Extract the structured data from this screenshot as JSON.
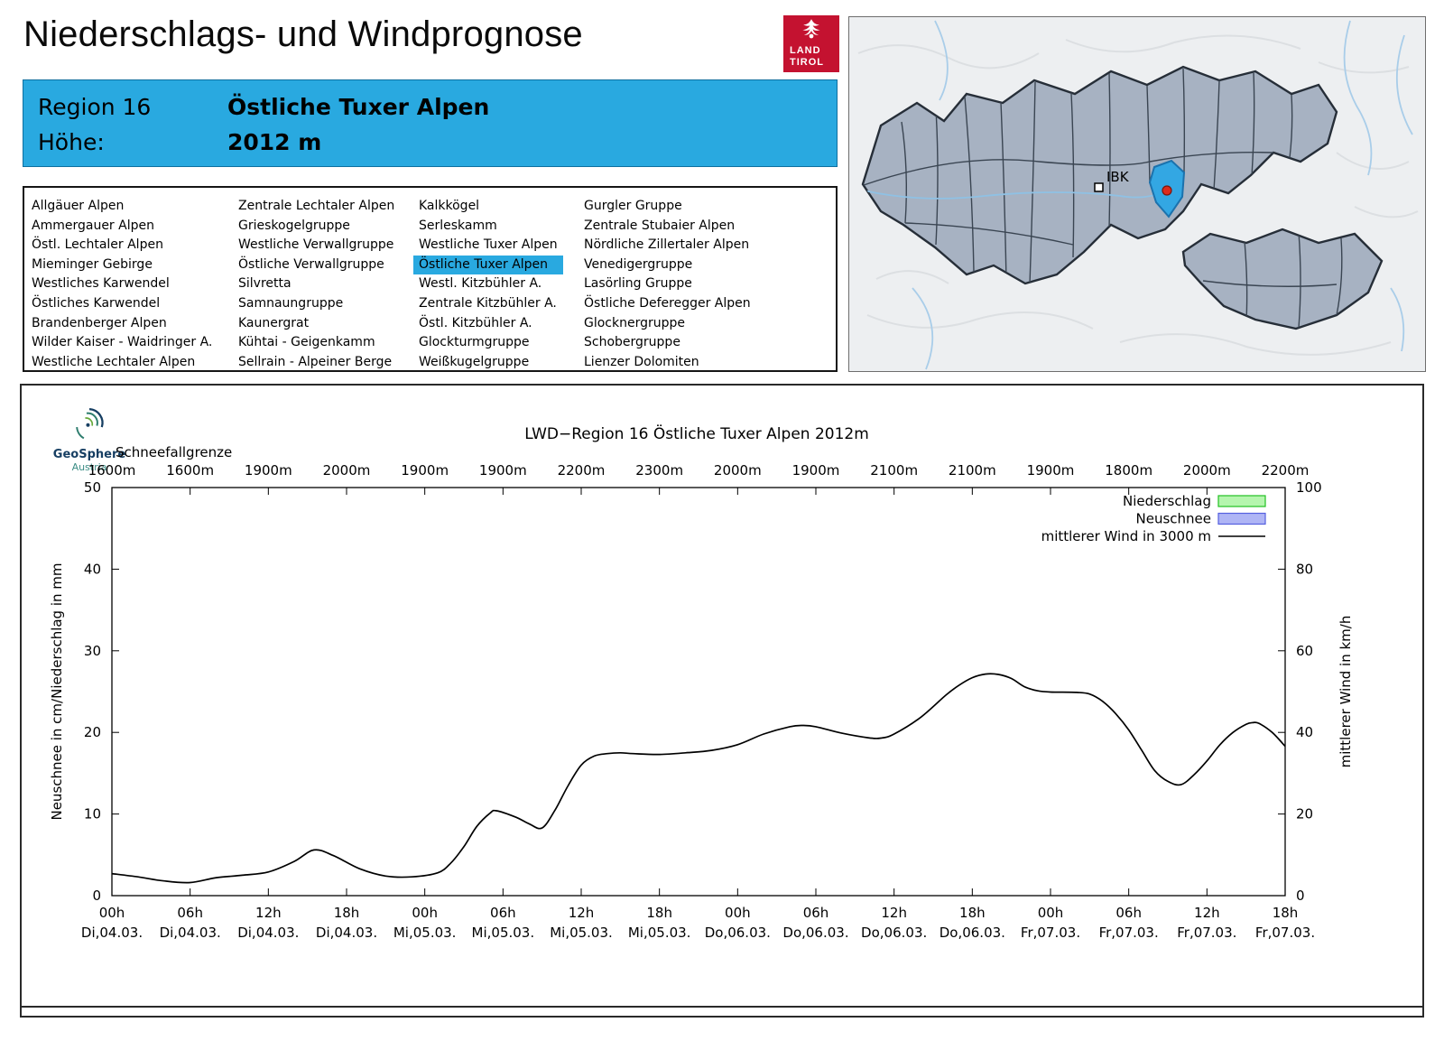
{
  "header": {
    "title": "Niederschlags- und Windprognose",
    "logo": {
      "line1": "LAND",
      "line2": "TIROL"
    }
  },
  "region_info": {
    "region_label": "Region 16",
    "region_name": "Östliche Tuxer Alpen",
    "altitude_label": "Höhe:",
    "altitude_value": "2012 m"
  },
  "region_list": {
    "selected": "Östliche Tuxer Alpen",
    "selected_color": "#29a9e0",
    "columns": [
      [
        "Allgäuer Alpen",
        "Ammergauer Alpen",
        "Östl. Lechtaler Alpen",
        "Mieminger Gebirge",
        "Westliches Karwendel",
        "Östliches Karwendel",
        "Brandenberger Alpen",
        "Wilder Kaiser - Waidringer A.",
        "Westliche Lechtaler Alpen"
      ],
      [
        "Zentrale Lechtaler Alpen",
        "Grieskogelgruppe",
        "Westliche Verwallgruppe",
        "Östliche Verwallgruppe",
        "Silvretta",
        "Samnaungruppe",
        "Kaunergrat",
        "Kühtai - Geigenkamm",
        "Sellrain - Alpeiner Berge"
      ],
      [
        "Kalkkögel",
        "Serleskamm",
        "Westliche Tuxer Alpen",
        "Östliche Tuxer Alpen",
        "Westl. Kitzbühler A.",
        "Zentrale Kitzbühler A.",
        "Östl. Kitzbühler A.",
        "Glockturmgruppe",
        "Weißkugelgruppe"
      ],
      [
        "Gurgler Gruppe",
        "Zentrale Stubaier Alpen",
        "Nördliche Zillertaler Alpen",
        "Venedigergruppe",
        "Lasörling Gruppe",
        "Östliche Deferegger Alpen",
        "Glocknergruppe",
        "Schobergruppe",
        "Lienzer Dolomiten"
      ]
    ]
  },
  "map": {
    "city_label": "IBK",
    "highlight_color": "#33a7e3",
    "marker_color": "#dd2b1c"
  },
  "chart": {
    "provider": {
      "name": "GeoSphere",
      "sub": "Austria"
    },
    "title": "LWD−Region 16 Östliche Tuxer Alpen 2012m",
    "snowline_label": "Schneefallgrenze",
    "ylabel_left": "Neuschnee in cm/Niederschlag in mm",
    "ylabel_right": "mittlerer Wind in km/h",
    "legend": [
      {
        "label": "Niederschlag",
        "type": "box",
        "fill": "#b5f5ae",
        "stroke": "#22c022"
      },
      {
        "label": "Neuschnee",
        "type": "box",
        "fill": "#afb5f5",
        "stroke": "#5560e0"
      },
      {
        "label": "mittlerer Wind in 3000 m",
        "type": "line",
        "stroke": "#000000"
      }
    ]
  },
  "chart_data": {
    "type": "line",
    "title": "LWD−Region 16 Östliche Tuxer Alpen 2012m",
    "xlabel": "",
    "ylabel_left": "Neuschnee in cm/Niederschlag in mm",
    "ylabel_right": "mittlerer Wind in km/h",
    "ylim_left": [
      0,
      50
    ],
    "ylim_right": [
      0,
      100
    ],
    "yticks_left": [
      0,
      10,
      20,
      30,
      40,
      50
    ],
    "yticks_right": [
      0,
      20,
      40,
      60,
      80,
      100
    ],
    "grid": false,
    "legend_position": "top-right",
    "x_range_hours": [
      0,
      90
    ],
    "x_tick_hours": [
      0,
      6,
      12,
      18,
      24,
      30,
      36,
      42,
      48,
      54,
      60,
      66,
      72,
      78,
      84,
      90
    ],
    "x_tick_labels_time": [
      "00h",
      "06h",
      "12h",
      "18h",
      "00h",
      "06h",
      "12h",
      "18h",
      "00h",
      "06h",
      "12h",
      "18h",
      "00h",
      "06h",
      "12h",
      "18h"
    ],
    "x_tick_labels_date": [
      "Di,04.03.",
      "Di,04.03.",
      "Di,04.03.",
      "Di,04.03.",
      "Mi,05.03.",
      "Mi,05.03.",
      "Mi,05.03.",
      "Mi,05.03.",
      "Do,06.03.",
      "Do,06.03.",
      "Do,06.03.",
      "Do,06.03.",
      "Fr,07.03.",
      "Fr,07.03.",
      "Fr,07.03.",
      "Fr,07.03."
    ],
    "snowline_m": [
      1600,
      1600,
      1900,
      2000,
      1900,
      1900,
      2200,
      2300,
      2000,
      1900,
      2100,
      2100,
      1900,
      1800,
      2000,
      2200
    ],
    "series": [
      {
        "name": "mittlerer Wind in 3000 m",
        "axis": "right",
        "unit": "km/h",
        "style": "line",
        "color": "#000000",
        "x": [
          0,
          2,
          4,
          6,
          8,
          10,
          12,
          14,
          15.5,
          17,
          19,
          21,
          23,
          25,
          26,
          27,
          28,
          29,
          29.5,
          31,
          32,
          33,
          34,
          35,
          36,
          37,
          38,
          39,
          40,
          42,
          44,
          46,
          48,
          50,
          52,
          53,
          54,
          56,
          58,
          59,
          60,
          62,
          64,
          65,
          66,
          67,
          68,
          69,
          70,
          71,
          72,
          74,
          75,
          76,
          77,
          78,
          79,
          80,
          81,
          82,
          83,
          84,
          85,
          86,
          87,
          87.5,
          88,
          89,
          90
        ],
        "values": [
          5.4,
          4.6,
          3.6,
          3.2,
          4.4,
          5.0,
          5.8,
          8.4,
          11.2,
          9.8,
          6.6,
          4.8,
          4.6,
          5.6,
          8.0,
          12.0,
          17.0,
          20.2,
          20.8,
          19.2,
          17.6,
          16.6,
          21.0,
          27.0,
          32.0,
          34.2,
          34.8,
          35.0,
          34.8,
          34.6,
          35.0,
          35.6,
          37.0,
          39.6,
          41.4,
          41.7,
          41.4,
          39.8,
          38.7,
          38.6,
          39.6,
          43.6,
          49.2,
          51.6,
          53.4,
          54.3,
          54.2,
          53.2,
          51.2,
          50.2,
          49.9,
          49.8,
          49.4,
          47.6,
          44.6,
          40.6,
          35.6,
          30.6,
          28.0,
          27.2,
          29.6,
          33.0,
          37.0,
          40.0,
          42.0,
          42.4,
          42.2,
          40.0,
          36.6
        ]
      },
      {
        "name": "Niederschlag",
        "axis": "left",
        "unit": "mm",
        "style": "bars",
        "color": "#b5f5ae",
        "values": []
      },
      {
        "name": "Neuschnee",
        "axis": "left",
        "unit": "cm",
        "style": "bars",
        "color": "#afb5f5",
        "values": []
      }
    ]
  }
}
